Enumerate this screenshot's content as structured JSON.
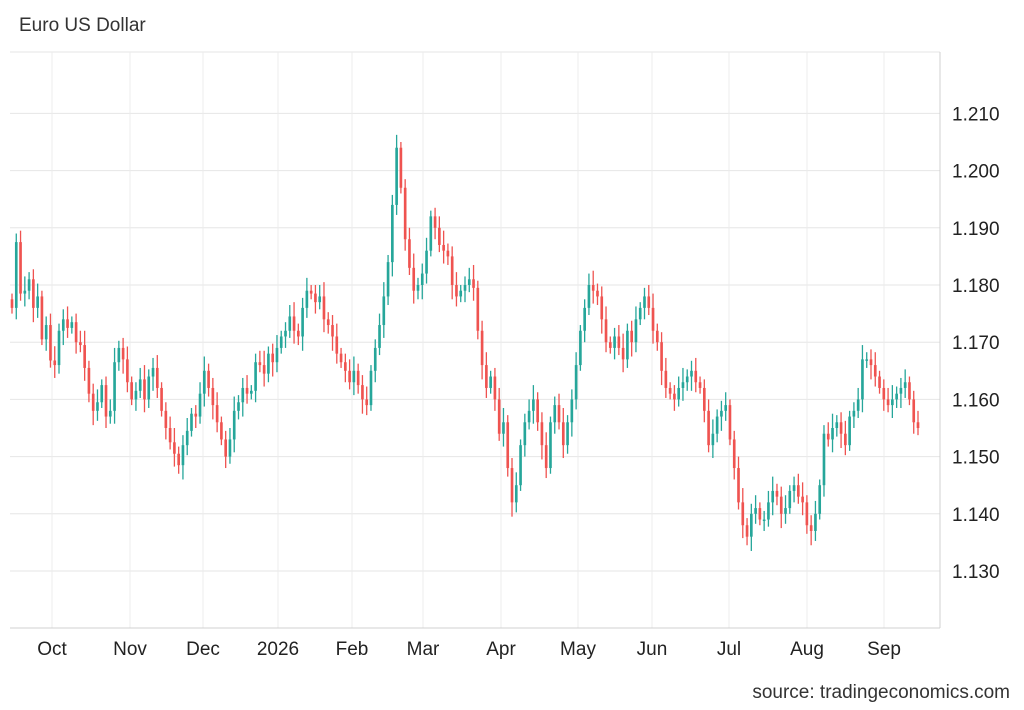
{
  "header": {
    "title": "Euro US Dollar"
  },
  "footer": {
    "source": "source: tradingeconomics.com"
  },
  "colors": {
    "up": "#26a69a",
    "down": "#ef5350",
    "grid": "#e6e6e6"
  },
  "chart_data": {
    "type": "candlestick",
    "title": "Euro US Dollar",
    "ylim": [
      1.12,
      1.22
    ],
    "y_ticks": [
      "1.130",
      "1.140",
      "1.150",
      "1.160",
      "1.170",
      "1.180",
      "1.190",
      "1.200",
      "1.210"
    ],
    "x_tick_labels": [
      "Oct",
      "Nov",
      "Dec",
      "2026",
      "Feb",
      "Mar",
      "Apr",
      "May",
      "Jun",
      "Jul",
      "Aug",
      "Sep"
    ],
    "grid": true,
    "series": [
      {
        "values": [
          1.176,
          1.1875,
          1.1785,
          1.179,
          1.181,
          1.176,
          1.178,
          1.1705,
          1.173,
          1.1668,
          1.166,
          1.172,
          1.174,
          1.1725,
          1.1735,
          1.17,
          1.1695,
          1.1655,
          1.161,
          1.158,
          1.1595,
          1.1625,
          1.157,
          1.158,
          1.1665,
          1.169,
          1.167,
          1.163,
          1.16,
          1.1615,
          1.1635,
          1.16,
          1.164,
          1.1655,
          1.162,
          1.158,
          1.155,
          1.1525,
          1.1505,
          1.1485,
          1.152,
          1.1545,
          1.1575,
          1.157,
          1.161,
          1.165,
          1.162,
          1.159,
          1.156,
          1.153,
          1.15,
          1.153,
          1.158,
          1.1595,
          1.162,
          1.161,
          1.1615,
          1.1665,
          1.166,
          1.1645,
          1.168,
          1.1665,
          1.169,
          1.171,
          1.172,
          1.1745,
          1.172,
          1.171,
          1.176,
          1.179,
          1.1785,
          1.177,
          1.178,
          1.174,
          1.173,
          1.171,
          1.168,
          1.1665,
          1.165,
          1.163,
          1.165,
          1.1625,
          1.16,
          1.159,
          1.165,
          1.169,
          1.173,
          1.178,
          1.184,
          1.194,
          1.204,
          1.197,
          1.188,
          1.183,
          1.179,
          1.18,
          1.182,
          1.186,
          1.192,
          1.19,
          1.187,
          1.186,
          1.185,
          1.18,
          1.178,
          1.179,
          1.18,
          1.181,
          1.1795,
          1.172,
          1.166,
          1.162,
          1.164,
          1.16,
          1.154,
          1.156,
          1.148,
          1.142,
          1.145,
          1.152,
          1.156,
          1.158,
          1.16,
          1.156,
          1.152,
          1.148,
          1.156,
          1.159,
          1.156,
          1.152,
          1.156,
          1.16,
          1.166,
          1.172,
          1.176,
          1.18,
          1.179,
          1.178,
          1.174,
          1.17,
          1.169,
          1.171,
          1.169,
          1.167,
          1.172,
          1.17,
          1.174,
          1.176,
          1.178,
          1.176,
          1.172,
          1.17,
          1.165,
          1.162,
          1.161,
          1.16,
          1.162,
          1.163,
          1.164,
          1.165,
          1.163,
          1.162,
          1.158,
          1.152,
          1.154,
          1.157,
          1.158,
          1.159,
          1.153,
          1.148,
          1.142,
          1.138,
          1.136,
          1.14,
          1.141,
          1.139,
          1.139,
          1.142,
          1.144,
          1.143,
          1.14,
          1.141,
          1.144,
          1.145,
          1.143,
          1.142,
          1.138,
          1.137,
          1.14,
          1.145,
          1.154,
          1.153,
          1.155,
          1.156,
          1.154,
          1.152,
          1.157,
          1.158,
          1.16,
          1.167,
          1.167,
          1.166,
          1.164,
          1.162,
          1.16,
          1.159,
          1.16,
          1.161,
          1.162,
          1.163,
          1.16,
          1.156,
          1.155
        ]
      }
    ]
  }
}
